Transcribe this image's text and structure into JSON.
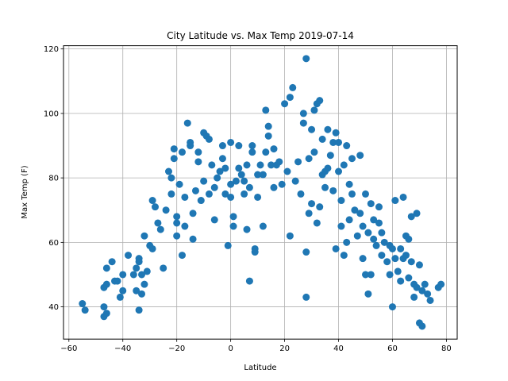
{
  "chart_data": {
    "type": "scatter",
    "title": "City Latitude vs. Max Temp 2019-07-14",
    "xlabel": "Latitude",
    "ylabel": "Max Temp (F)",
    "xlim": [
      -62,
      84
    ],
    "ylim": [
      30,
      121
    ],
    "xticks": [
      -60,
      -40,
      -20,
      0,
      20,
      40,
      60,
      80
    ],
    "yticks": [
      40,
      60,
      80,
      100,
      120
    ],
    "xtick_labels": [
      "−60",
      "−40",
      "−20",
      "0",
      "20",
      "40",
      "60",
      "80"
    ],
    "ytick_labels": [
      "40",
      "60",
      "80",
      "100",
      "120"
    ],
    "grid": true,
    "legend": "none",
    "point_color": "#1f77b4",
    "points": [
      [
        -55,
        41
      ],
      [
        -54,
        39
      ],
      [
        -47,
        37
      ],
      [
        -47,
        40
      ],
      [
        -46,
        38
      ],
      [
        -47,
        46
      ],
      [
        -46,
        47
      ],
      [
        -46,
        52
      ],
      [
        -44,
        54
      ],
      [
        -43,
        48
      ],
      [
        -42,
        48
      ],
      [
        -41,
        43
      ],
      [
        -40,
        45
      ],
      [
        -40,
        50
      ],
      [
        -38,
        56
      ],
      [
        -36,
        50
      ],
      [
        -35,
        45
      ],
      [
        -35,
        52
      ],
      [
        -34,
        55
      ],
      [
        -34,
        54
      ],
      [
        -34,
        39
      ],
      [
        -33,
        44
      ],
      [
        -33,
        50
      ],
      [
        -32,
        62
      ],
      [
        -32,
        47
      ],
      [
        -31,
        51
      ],
      [
        -30,
        59
      ],
      [
        -29,
        58
      ],
      [
        -29,
        73
      ],
      [
        -28,
        71
      ],
      [
        -27,
        66
      ],
      [
        -26,
        64
      ],
      [
        -25,
        52
      ],
      [
        -24,
        70
      ],
      [
        -23,
        82
      ],
      [
        -22,
        80
      ],
      [
        -22,
        75
      ],
      [
        -21,
        89
      ],
      [
        -21,
        86
      ],
      [
        -20,
        66
      ],
      [
        -20,
        68
      ],
      [
        -20,
        62
      ],
      [
        -19,
        78
      ],
      [
        -18,
        88
      ],
      [
        -18,
        56
      ],
      [
        -17,
        65
      ],
      [
        -17,
        74
      ],
      [
        -16,
        97
      ],
      [
        -15,
        91
      ],
      [
        -15,
        90
      ],
      [
        -14,
        69
      ],
      [
        -14,
        61
      ],
      [
        -13,
        76
      ],
      [
        -12,
        88
      ],
      [
        -12,
        85
      ],
      [
        -11,
        73
      ],
      [
        -10,
        79
      ],
      [
        -10,
        94
      ],
      [
        -9,
        93
      ],
      [
        -8,
        92
      ],
      [
        -8,
        75
      ],
      [
        -7,
        84
      ],
      [
        -6,
        67
      ],
      [
        -6,
        77
      ],
      [
        -5,
        80
      ],
      [
        -4,
        82
      ],
      [
        -3,
        90
      ],
      [
        -3,
        86
      ],
      [
        -2,
        83
      ],
      [
        -2,
        75
      ],
      [
        -1,
        59
      ],
      [
        0,
        91
      ],
      [
        0,
        78
      ],
      [
        0,
        74
      ],
      [
        1,
        68
      ],
      [
        1,
        65
      ],
      [
        2,
        79
      ],
      [
        3,
        83
      ],
      [
        3,
        90
      ],
      [
        4,
        81
      ],
      [
        5,
        75
      ],
      [
        5,
        79
      ],
      [
        6,
        64
      ],
      [
        6,
        84
      ],
      [
        7,
        48
      ],
      [
        7,
        77
      ],
      [
        8,
        88
      ],
      [
        8,
        90
      ],
      [
        9,
        57
      ],
      [
        9,
        58
      ],
      [
        10,
        81
      ],
      [
        10,
        74
      ],
      [
        11,
        84
      ],
      [
        12,
        81
      ],
      [
        12,
        65
      ],
      [
        13,
        88
      ],
      [
        13,
        101
      ],
      [
        14,
        96
      ],
      [
        14,
        93
      ],
      [
        15,
        84
      ],
      [
        16,
        77
      ],
      [
        16,
        89
      ],
      [
        17,
        84
      ],
      [
        18,
        85
      ],
      [
        19,
        78
      ],
      [
        20,
        103
      ],
      [
        21,
        82
      ],
      [
        22,
        62
      ],
      [
        22,
        105
      ],
      [
        23,
        108
      ],
      [
        24,
        79
      ],
      [
        25,
        85
      ],
      [
        26,
        75
      ],
      [
        27,
        97
      ],
      [
        27,
        100
      ],
      [
        28,
        117
      ],
      [
        28,
        43
      ],
      [
        28,
        57
      ],
      [
        29,
        69
      ],
      [
        29,
        86
      ],
      [
        30,
        72
      ],
      [
        30,
        95
      ],
      [
        31,
        88
      ],
      [
        31,
        101
      ],
      [
        32,
        103
      ],
      [
        32,
        66
      ],
      [
        33,
        71
      ],
      [
        33,
        104
      ],
      [
        34,
        92
      ],
      [
        34,
        81
      ],
      [
        35,
        82
      ],
      [
        35,
        77
      ],
      [
        36,
        83
      ],
      [
        36,
        95
      ],
      [
        37,
        87
      ],
      [
        38,
        91
      ],
      [
        38,
        76
      ],
      [
        39,
        94
      ],
      [
        39,
        58
      ],
      [
        40,
        91
      ],
      [
        40,
        82
      ],
      [
        41,
        73
      ],
      [
        41,
        65
      ],
      [
        42,
        84
      ],
      [
        42,
        56
      ],
      [
        43,
        60
      ],
      [
        43,
        90
      ],
      [
        44,
        78
      ],
      [
        44,
        67
      ],
      [
        45,
        86
      ],
      [
        45,
        75
      ],
      [
        46,
        70
      ],
      [
        47,
        62
      ],
      [
        48,
        87
      ],
      [
        48,
        69
      ],
      [
        49,
        55
      ],
      [
        49,
        65
      ],
      [
        50,
        50
      ],
      [
        50,
        75
      ],
      [
        51,
        44
      ],
      [
        51,
        63
      ],
      [
        52,
        50
      ],
      [
        52,
        72
      ],
      [
        53,
        61
      ],
      [
        53,
        67
      ],
      [
        54,
        59
      ],
      [
        55,
        71
      ],
      [
        55,
        66
      ],
      [
        56,
        56
      ],
      [
        56,
        63
      ],
      [
        57,
        60
      ],
      [
        58,
        54
      ],
      [
        59,
        50
      ],
      [
        59,
        59
      ],
      [
        60,
        58
      ],
      [
        60,
        40
      ],
      [
        61,
        55
      ],
      [
        61,
        73
      ],
      [
        62,
        51
      ],
      [
        63,
        48
      ],
      [
        63,
        58
      ],
      [
        64,
        55
      ],
      [
        64,
        74
      ],
      [
        65,
        56
      ],
      [
        65,
        62
      ],
      [
        66,
        61
      ],
      [
        66,
        49
      ],
      [
        67,
        54
      ],
      [
        67,
        68
      ],
      [
        68,
        47
      ],
      [
        68,
        43
      ],
      [
        69,
        46
      ],
      [
        69,
        69
      ],
      [
        70,
        35
      ],
      [
        70,
        53
      ],
      [
        71,
        34
      ],
      [
        71,
        45
      ],
      [
        72,
        47
      ],
      [
        73,
        44
      ],
      [
        74,
        42
      ],
      [
        77,
        46
      ],
      [
        78,
        47
      ]
    ]
  }
}
